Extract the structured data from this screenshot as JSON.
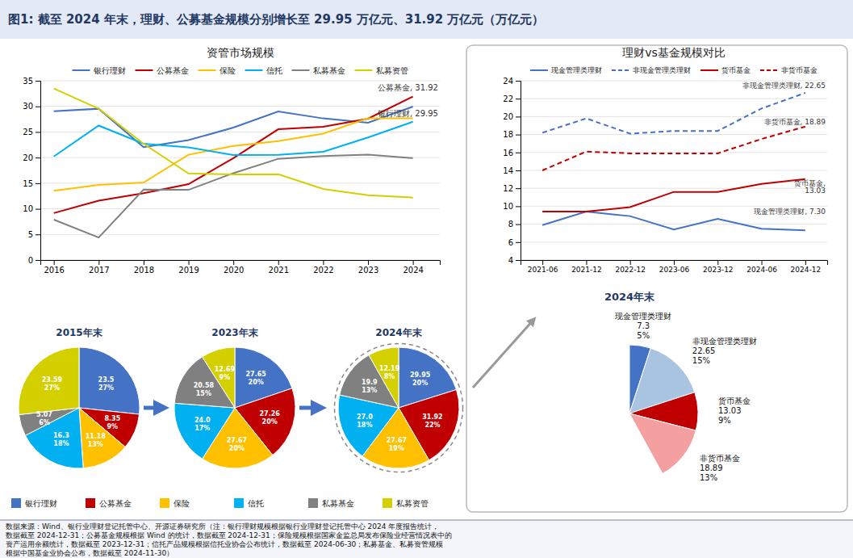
{
  "title": "图1: 截至 2024 年末，理财、公募基金规模分别增长至 29.95 万亿元、31.92 万亿元（万亿元）",
  "footer": [
    "数据来源：Wind、银行业理财登记托管中心、开源证券研究所（注：银行理财规模根据银行业理财登记托管中心 2024 年度报告统计，",
    "数据截至 2024-12-31；公募基金规模根据 Wind 的统计，数据截至 2024-12-31；保险规模根据国家金监总局发布保险业经营情况表中的",
    "资产运用余额统计，数据截至 2023-12-31；信托产品规模根据信托业协会公布统计，数据截至 2024-06-30；私募基金、私募资管规模",
    "根据中国基金业协会公布，数据截至 2024-11-30）"
  ],
  "chart_data": [
    {
      "type": "line",
      "title": "资管市场规模",
      "x": [
        2016,
        2017,
        2018,
        2019,
        2020,
        2021,
        2022,
        2023,
        2024
      ],
      "xlim": [
        2015.7,
        2024.6
      ],
      "xticks": [
        2016,
        2017,
        2018,
        2019,
        2020,
        2021,
        2022,
        2023,
        2024
      ],
      "ylim": [
        0,
        35
      ],
      "yticks": [
        0,
        5,
        10,
        15,
        20,
        25,
        30,
        35
      ],
      "grid": true,
      "legend": "top",
      "series": [
        {
          "name": "银行理财",
          "color": "#4472C4",
          "values": [
            29.05,
            29.54,
            22.04,
            23.4,
            25.86,
            29.0,
            27.65,
            26.8,
            29.95
          ]
        },
        {
          "name": "公募基金",
          "color": "#C00000",
          "values": [
            9.16,
            11.6,
            13.03,
            14.82,
            19.89,
            25.53,
            26.03,
            27.6,
            31.92
          ]
        },
        {
          "name": "保险",
          "color": "#FFC000",
          "values": [
            13.51,
            14.68,
            15.12,
            20.56,
            22.28,
            23.23,
            24.68,
            27.67,
            27.67
          ]
        },
        {
          "name": "信托",
          "color": "#00B0F0",
          "values": [
            20.22,
            26.25,
            22.7,
            22.0,
            20.49,
            20.55,
            21.14,
            23.92,
            27.0
          ]
        },
        {
          "name": "私募基金",
          "color": "#808080",
          "values": [
            7.89,
            4.4,
            13.74,
            13.7,
            16.96,
            19.76,
            20.28,
            20.58,
            19.9
          ]
        },
        {
          "name": "私募资管",
          "color": "#D4D000",
          "values": [
            33.49,
            29.55,
            22.7,
            16.89,
            16.7,
            16.76,
            13.87,
            12.65,
            12.19
          ]
        }
      ],
      "annotations": [
        "公募基金, 31.92",
        "银行理财, 29.95"
      ]
    },
    {
      "type": "pie",
      "title": "2015年末",
      "values": [
        23.5,
        8.35,
        11.18,
        16.3,
        5.07,
        23.59
      ],
      "percents": [
        27,
        9,
        13,
        18,
        6,
        27
      ],
      "percent_labels": [
        "27%",
        "9%",
        "13%",
        "18%",
        "6%",
        "27%"
      ],
      "colors": [
        "#4472C4",
        "#C00000",
        "#FFC000",
        "#00B0F0",
        "#808080",
        "#D4D000"
      ],
      "data_labels": true
    },
    {
      "type": "pie",
      "title": "2023年末",
      "values": [
        27.65,
        27.26,
        27.67,
        24.0,
        20.58,
        12.69
      ],
      "value_labels": [
        "27.65",
        "27.26",
        "27.67",
        "24.0",
        "20.58",
        "12.69"
      ],
      "percents": [
        20,
        20,
        20,
        17,
        15,
        9
      ],
      "percent_labels": [
        "20%",
        "20%",
        "20%",
        "17%",
        "15%",
        "9%"
      ],
      "colors": [
        "#4472C4",
        "#C00000",
        "#FFC000",
        "#00B0F0",
        "#808080",
        "#D4D000"
      ],
      "data_labels": true
    },
    {
      "type": "pie",
      "title": "2024年末",
      "values": [
        29.95,
        31.92,
        27.67,
        27.0,
        19.9,
        12.19
      ],
      "value_labels": [
        "29.95",
        "31.92",
        "27.67",
        "27.0",
        "19.9",
        "12.19"
      ],
      "percents": [
        20,
        22,
        19,
        18,
        13,
        8
      ],
      "percent_labels": [
        "20%",
        "22%",
        "19%",
        "18%",
        "13%",
        "8%"
      ],
      "colors": [
        "#4472C4",
        "#C00000",
        "#FFC000",
        "#00B0F0",
        "#808080",
        "#D4D000"
      ],
      "data_labels": true
    },
    {
      "type": "line",
      "title": "理财vs基金规模对比",
      "categories": [
        "2021-06",
        "2021-12",
        "2022-12",
        "2023-06",
        "2023-12",
        "2024-06",
        "2024-12"
      ],
      "ylim": [
        4,
        24
      ],
      "yticks": [
        4,
        6,
        8,
        10,
        12,
        14,
        16,
        18,
        20,
        22,
        24
      ],
      "grid": true,
      "legend": "top",
      "series": [
        {
          "name": "现金管理类理财",
          "color": "#4472C4",
          "line_style": "solid",
          "values": [
            7.9,
            9.4,
            8.9,
            7.4,
            8.6,
            7.5,
            7.3
          ]
        },
        {
          "name": "非现金管理类理财",
          "color": "#4472C4",
          "line_style": "dashed",
          "values": [
            18.2,
            19.8,
            18.1,
            18.4,
            18.4,
            20.9,
            22.65
          ]
        },
        {
          "name": "货币基金",
          "color": "#C00000",
          "line_style": "solid",
          "values": [
            9.4,
            9.4,
            9.9,
            11.6,
            11.6,
            12.5,
            13.03
          ]
        },
        {
          "name": "非货币基金",
          "color": "#C00000",
          "line_style": "dashed",
          "values": [
            14.0,
            16.1,
            15.9,
            15.9,
            15.9,
            17.5,
            18.89
          ]
        }
      ],
      "annotations": [
        "非现金管理类理财, 22.65",
        "非货币基金, 18.89",
        "货币基金,",
        "13.03",
        "现金管理类理财, 7.30"
      ]
    },
    {
      "type": "pie",
      "title": "2024年末",
      "categories": [
        "现金管理类理财",
        "非现金管理类理财",
        "货币基金",
        "非货币基金"
      ],
      "values": [
        7.3,
        22.65,
        13.03,
        18.89
      ],
      "percents": [
        5,
        15,
        9,
        13
      ],
      "percent_labels": [
        "5%",
        "15%",
        "9%",
        "13%"
      ],
      "colors": [
        "#4472C4",
        "#A8C4E0",
        "#C00000",
        "#F4A0A0"
      ],
      "data_labels": true
    }
  ]
}
